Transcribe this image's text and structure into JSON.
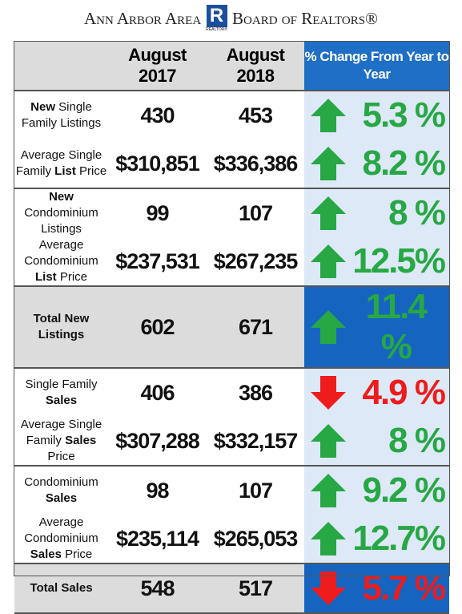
{
  "header": {
    "left": "Ann Arbor Area",
    "logo": "R",
    "logo_caption": "REALTOR®",
    "right": "Board of Realtors®"
  },
  "table": {
    "columns": [
      "",
      "August 2017",
      "August 2018",
      "% Change From Year to Year"
    ],
    "groups": [
      {
        "total": false,
        "rows": [
          {
            "label": [
              {
                "text": "New",
                "bold": true
              },
              {
                "text": " Single Family Listings",
                "bold": false
              }
            ],
            "v2017": "430",
            "v2018": "453",
            "direction": "up",
            "change": "5.3 %"
          },
          {
            "label": [
              {
                "text": "Average Single Family ",
                "bold": false
              },
              {
                "text": "List",
                "bold": true
              },
              {
                "text": " Price",
                "bold": false
              }
            ],
            "v2017": "$310,851",
            "v2018": "$336,386",
            "direction": "up",
            "change": "8.2 %"
          }
        ]
      },
      {
        "total": false,
        "rows": [
          {
            "label": [
              {
                "text": "New",
                "bold": true
              },
              {
                "text": " Condominium Listings",
                "bold": false
              }
            ],
            "v2017": "99",
            "v2018": "107",
            "direction": "up",
            "change": "8 %"
          },
          {
            "label": [
              {
                "text": "Average Condominium ",
                "bold": false
              },
              {
                "text": "List",
                "bold": true
              },
              {
                "text": " Price",
                "bold": false
              }
            ],
            "v2017": "$237,531",
            "v2018": "$267,235",
            "direction": "up",
            "change": "12.5%"
          }
        ]
      },
      {
        "total": true,
        "rows": [
          {
            "label": [
              {
                "text": "Total New Listings",
                "bold": true
              }
            ],
            "v2017": "602",
            "v2018": "671",
            "direction": "up",
            "change": "11.4 %"
          }
        ]
      },
      {
        "total": false,
        "rows": [
          {
            "label": [
              {
                "text": "Single Family ",
                "bold": false
              },
              {
                "text": "Sales",
                "bold": true
              }
            ],
            "v2017": "406",
            "v2018": "386",
            "direction": "down",
            "change": "4.9 %"
          },
          {
            "label": [
              {
                "text": "Average Single Family ",
                "bold": false
              },
              {
                "text": "Sales",
                "bold": true
              },
              {
                "text": " Price",
                "bold": false
              }
            ],
            "v2017": "$307,288",
            "v2018": "$332,157",
            "direction": "up",
            "change": "8 %"
          }
        ]
      },
      {
        "total": false,
        "rows": [
          {
            "label": [
              {
                "text": "Condominium ",
                "bold": false
              },
              {
                "text": "Sales",
                "bold": true
              }
            ],
            "v2017": "98",
            "v2018": "107",
            "direction": "up",
            "change": "9.2 %"
          },
          {
            "label": [
              {
                "text": "Average Condominium ",
                "bold": false
              },
              {
                "text": "Sales",
                "bold": true
              },
              {
                "text": " Price",
                "bold": false
              }
            ],
            "v2017": "$235,114",
            "v2018": "$265,053",
            "direction": "up",
            "change": "12.7%"
          }
        ]
      },
      {
        "total": true,
        "rows": [
          {
            "label": [
              {
                "text": "Total Sales",
                "bold": true
              }
            ],
            "v2017": "548",
            "v2018": "517",
            "direction": "down",
            "change": "5.7 %"
          }
        ]
      }
    ]
  }
}
